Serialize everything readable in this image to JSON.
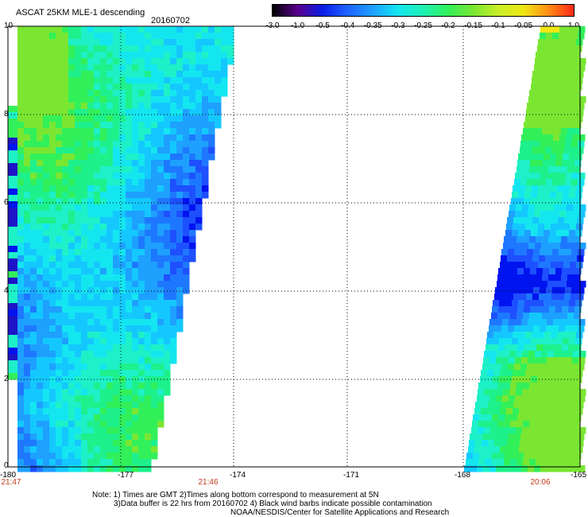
{
  "header": {
    "title": "ASCAT 25KM MLE-1 descending",
    "date": "20160702"
  },
  "colorbar": {
    "ticks": [
      "-3.0",
      "-1.0",
      "-0.5",
      "-0.4",
      "-0.35",
      "-0.3",
      "-0.25",
      "-0.2",
      "-0.15",
      "-0.1",
      "-0.05",
      "0.0",
      "1.0"
    ],
    "colors": [
      "#000000",
      "#5a008c",
      "#0a1ee6",
      "#1e64ff",
      "#1ea0ff",
      "#14e6f0",
      "#1ef0b4",
      "#32f05a",
      "#7ae632",
      "#c8f028",
      "#f0e614",
      "#ff8c14",
      "#ff2814"
    ]
  },
  "map": {
    "y_ticks": [
      "10",
      "8",
      "6",
      "4",
      "2",
      "0"
    ],
    "x_ticks": [
      "-180",
      "-177",
      "-174",
      "-171",
      "-168",
      "-165"
    ],
    "time_labels": [
      "21:47",
      "21:46",
      "20:06"
    ]
  },
  "notes": {
    "line1": "Note: 1) Times are GMT 2)Times along bottom correspond to measurement at 5N",
    "line2": "3)Data buffer is 22 hrs from 20160702 4) Black wind barbs indicate possible contamination",
    "line3": "NOAA/NESDIS/Center for Satellite Applications and Research"
  }
}
